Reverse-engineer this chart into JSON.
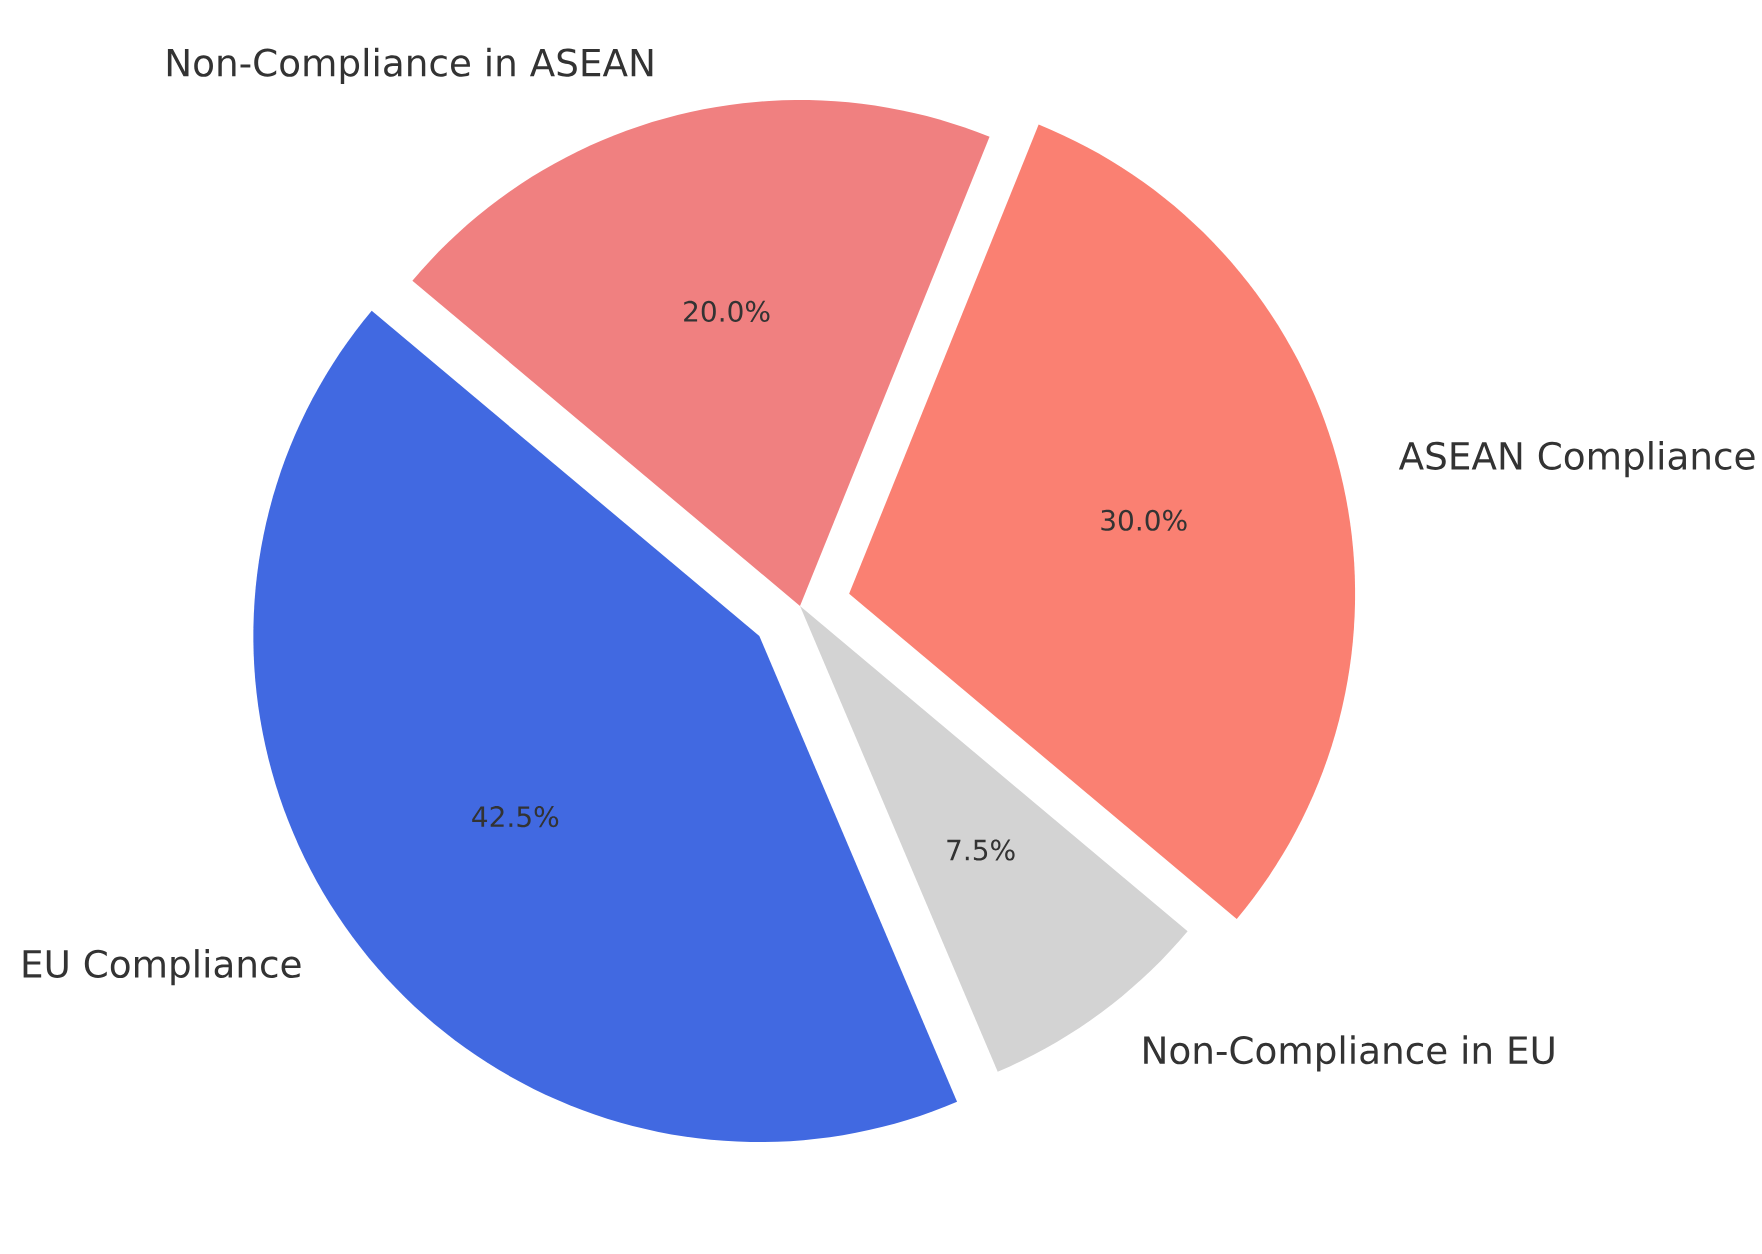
{
  "chart_data": {
    "type": "pie",
    "categories": [
      "EU Compliance",
      "Non-Compliance in EU",
      "ASEAN Compliance",
      "Non-Compliance in ASEAN"
    ],
    "values": [
      42.5,
      7.5,
      30,
      20
    ],
    "value_labels": [
      "42.5%",
      "7.5%",
      "30.0%",
      "20.0%"
    ],
    "colors": [
      "#4169e1",
      "#d3d3d3",
      "#fa8072",
      "#f08080"
    ]
  }
}
